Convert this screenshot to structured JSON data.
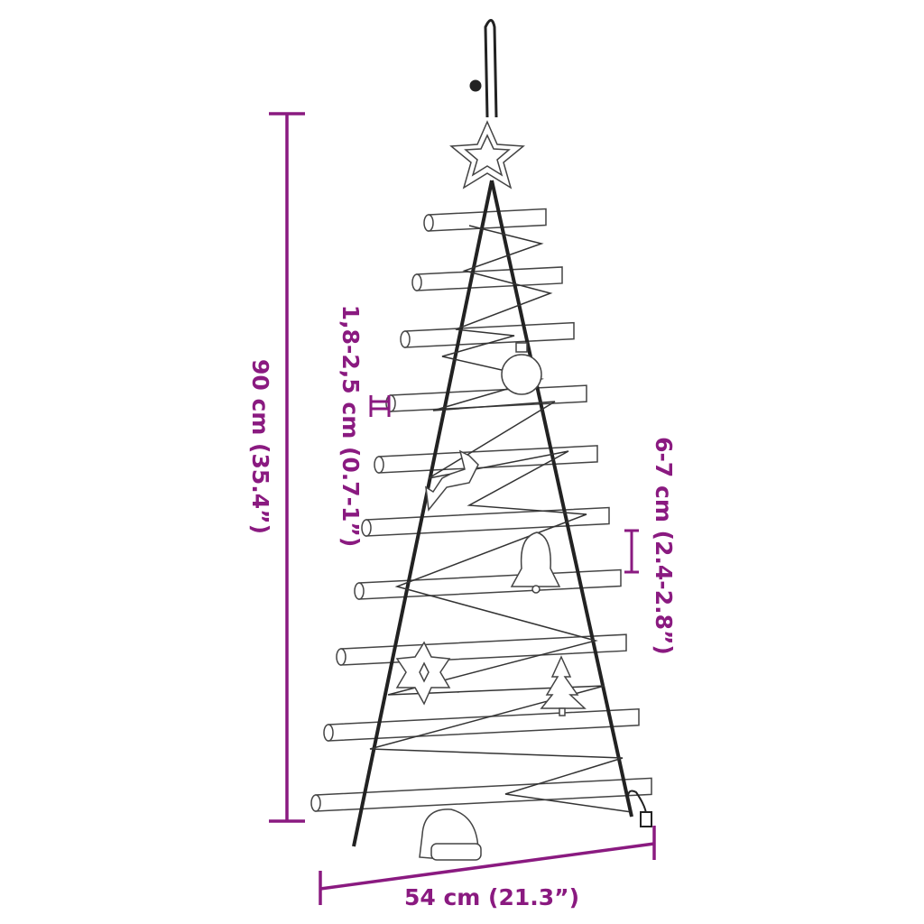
{
  "labels": {
    "height": "90 cm (35.4”)",
    "rung_diameter": "1,8-2,5 cm (0.7-1”)",
    "rung_spacing": "6-7 cm (2.4-2.8”)",
    "width": "54 cm (21.3”)"
  },
  "colors": {
    "dimension": "#8a1a80",
    "drawing": "#333333"
  },
  "ornaments": [
    "star-icon",
    "bauble-icon",
    "reindeer-icon",
    "bell-icon",
    "snowflake-icon",
    "tree-icon",
    "santa-hat-icon"
  ]
}
